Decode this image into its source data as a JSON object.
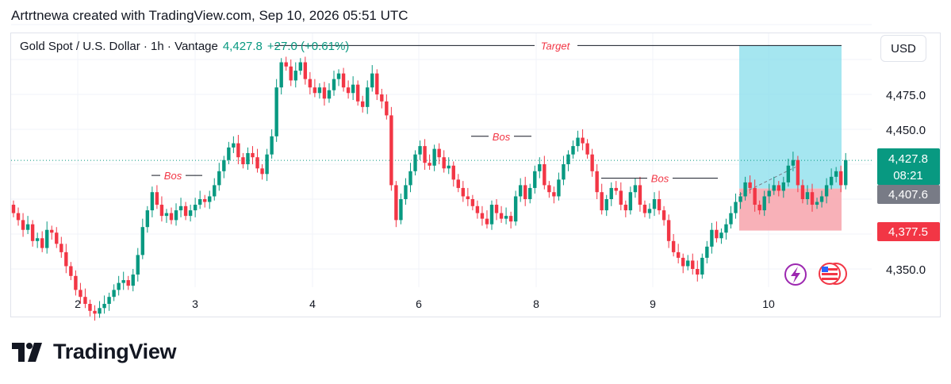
{
  "header": {
    "text": "Artrtnewa created with TradingView.com, Sep 10, 2026 05:51 UTC"
  },
  "legend": {
    "symbol": "Gold Spot / U.S. Dollar · 1h · Vantage",
    "price": "4,427.8",
    "change": "+27.0 (+0.61%)"
  },
  "currency_button": "USD",
  "brand": "TradingView",
  "price_tags": {
    "current": {
      "price": "4,427.8",
      "countdown": "08:21",
      "color": "#089981"
    },
    "entry": {
      "price": "4,407.6",
      "color": "#787b86"
    },
    "stop": {
      "price": "4,377.5",
      "color": "#f23645"
    }
  },
  "annotations": {
    "target_label": "Target",
    "bos_labels": [
      "Bos",
      "Bos",
      "Bos"
    ]
  },
  "colors": {
    "up": "#089981",
    "down": "#f23645",
    "target_zone": "#7fdbe9",
    "stop_zone": "#f7a8b0"
  },
  "chart_data": {
    "type": "candlestick",
    "title": "",
    "x_tick_labels": [
      "2",
      "3",
      "4",
      "6",
      "8",
      "9",
      "10"
    ],
    "y_tick_labels": [
      4475.0,
      4450.0,
      4350.0
    ],
    "ylim": [
      4332,
      4600
    ],
    "grid": true,
    "current_price": 4427.8,
    "entry_price": 4407.6,
    "stop_price": 4377.5,
    "target_price": 4510.0,
    "candle_closes": [
      4390,
      4385,
      4378,
      4382,
      4370,
      4372,
      4365,
      4378,
      4376,
      4368,
      4362,
      4352,
      4345,
      4335,
      4330,
      4325,
      4320,
      4318,
      4322,
      4325,
      4330,
      4335,
      4340,
      4342,
      4338,
      4346,
      4360,
      4380,
      4392,
      4405,
      4396,
      4388,
      4390,
      4385,
      4392,
      4395,
      4388,
      4392,
      4396,
      4400,
      4398,
      4402,
      4410,
      4420,
      4428,
      4437,
      4440,
      4430,
      4425,
      4433,
      4430,
      4422,
      4418,
      4432,
      4445,
      4480,
      4498,
      4495,
      4485,
      4492,
      4498,
      4486,
      4480,
      4476,
      4480,
      4472,
      4478,
      4486,
      4490,
      4480,
      4476,
      4482,
      4470,
      4466,
      4480,
      4490,
      4475,
      4470,
      4460,
      4410,
      4385,
      4400,
      4410,
      4420,
      4432,
      4438,
      4426,
      4424,
      4436,
      4430,
      4422,
      4424,
      4414,
      4408,
      4402,
      4400,
      4395,
      4390,
      4386,
      4382,
      4396,
      4390,
      4386,
      4388,
      4384,
      4402,
      4410,
      4400,
      4408,
      4420,
      4425,
      4410,
      4405,
      4402,
      4414,
      4425,
      4432,
      4438,
      4444,
      4440,
      4432,
      4420,
      4405,
      4392,
      4400,
      4408,
      4406,
      4396,
      4392,
      4405,
      4410,
      4396,
      4390,
      4393,
      4400,
      4392,
      4385,
      4370,
      4362,
      4358,
      4352,
      4356,
      4350,
      4346,
      4358,
      4366,
      4378,
      4372,
      4376,
      4382,
      4390,
      4398,
      4402,
      4412,
      4408,
      4396,
      4392,
      4402,
      4406,
      4410,
      4406,
      4412,
      4424,
      4428,
      4410,
      4400,
      4405,
      4396,
      4398,
      4402,
      4410,
      4416,
      4420,
      4410,
      4428
    ]
  }
}
